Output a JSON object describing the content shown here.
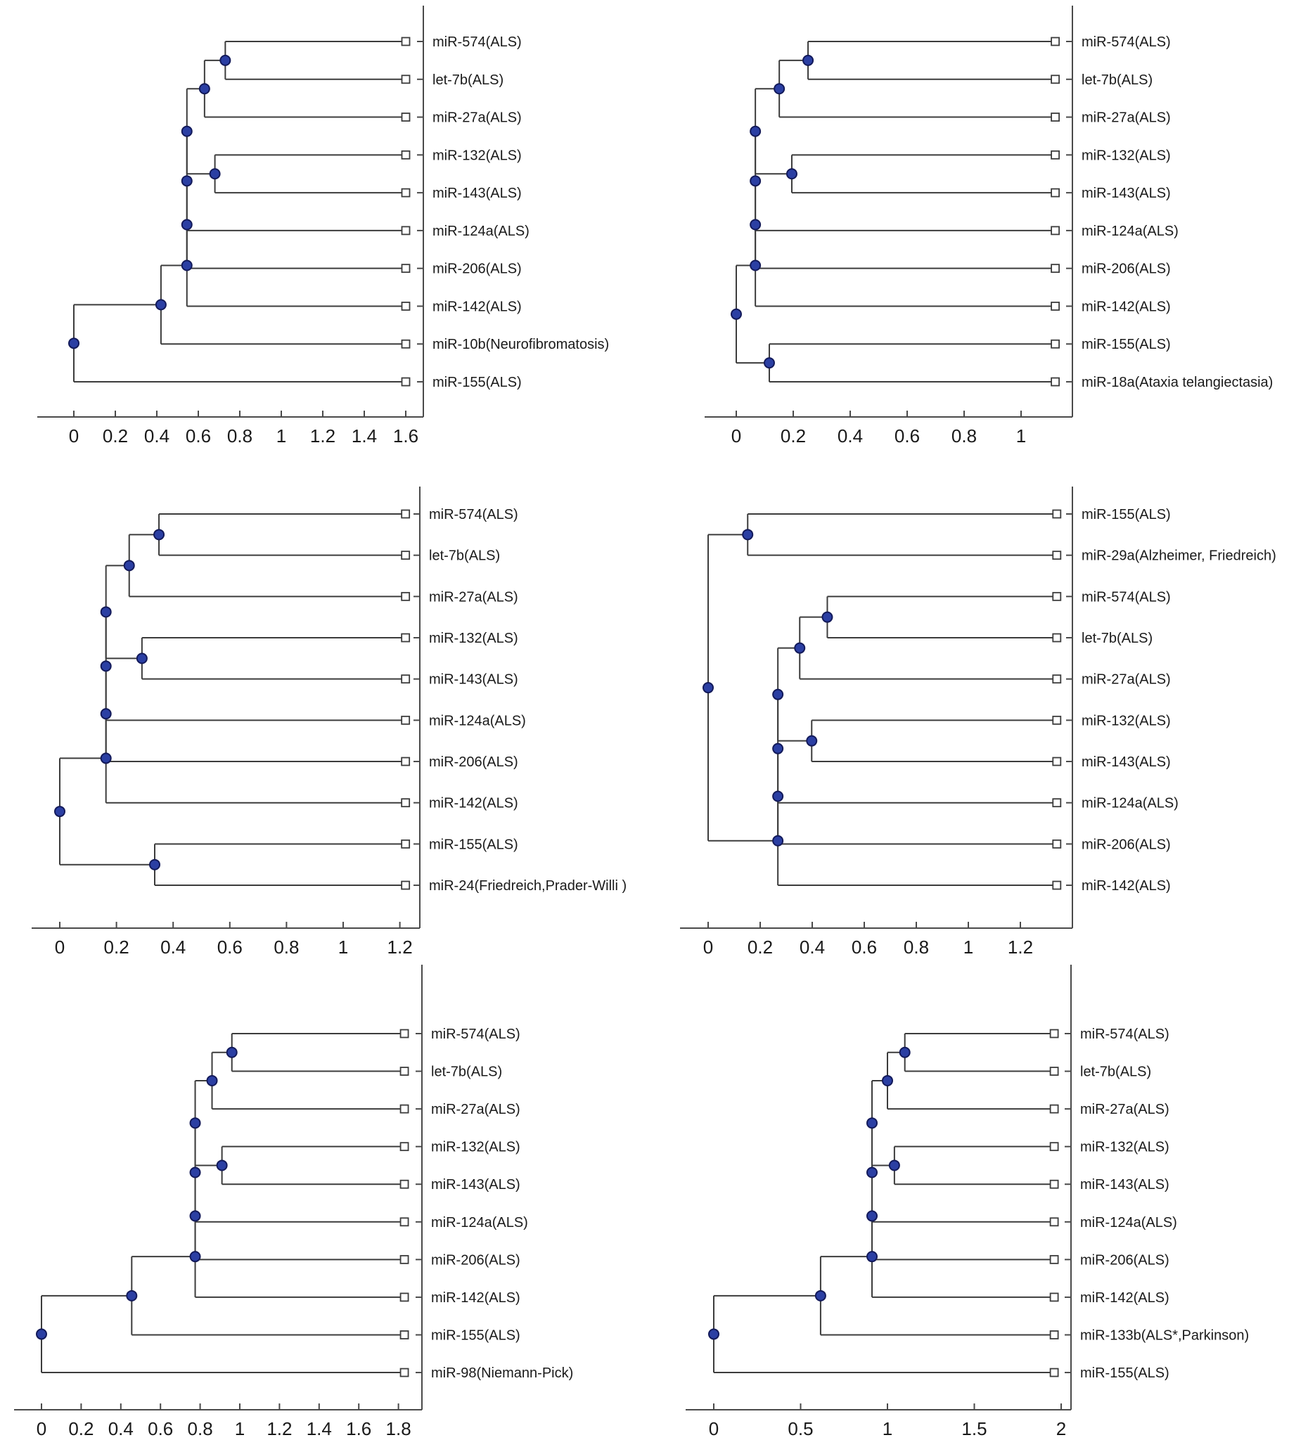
{
  "figure": {
    "kind": "dendrogram-grid",
    "grid": {
      "rows": 3,
      "cols": 2
    }
  },
  "colors": {
    "background": "#ffffff",
    "branch_line": "#3c3c3c",
    "axis_line": "#4a4a4a",
    "node_fill": "#2b3fa3",
    "node_stroke": "#131a5a",
    "leaf_marker_fill": "#ffffff",
    "leaf_marker_stroke": "#3c3c3c",
    "text": "#1a1a1a"
  },
  "chart_data": [
    {
      "type": "dendrogram",
      "panel": "top-left",
      "orientation": "leaves-right",
      "leaves": [
        "miR-574(ALS)",
        "let-7b(ALS)",
        "miR-27a(ALS)",
        "miR-132(ALS)",
        "miR-143(ALS)",
        "miR-124a(ALS)",
        "miR-206(ALS)",
        "miR-142(ALS)",
        "miR-10b(Neurofibromatosis)",
        "miR-155(ALS)"
      ],
      "merges": [
        {
          "id": "A",
          "a": "L0",
          "b": "L1",
          "v": 0.73
        },
        {
          "id": "B",
          "a": "A",
          "b": "L2",
          "v": 0.63
        },
        {
          "id": "C",
          "a": "L3",
          "b": "L4",
          "v": 0.68
        },
        {
          "id": "D",
          "a": "B",
          "b": "C",
          "v": 0.545
        },
        {
          "id": "E",
          "a": "D",
          "b": "L5",
          "v": 0.545
        },
        {
          "id": "F",
          "a": "E",
          "b": "L6",
          "v": 0.545
        },
        {
          "id": "G",
          "a": "F",
          "b": "L7",
          "v": 0.545
        },
        {
          "id": "H",
          "a": "G",
          "b": "L8",
          "v": 0.42
        },
        {
          "id": "R",
          "a": "H",
          "b": "L9",
          "v": 0.0
        }
      ],
      "ticks": [
        0,
        0.2,
        0.4,
        0.6,
        0.8,
        1,
        1.2,
        1.4,
        1.6
      ],
      "tick_labels": [
        "0",
        "0.2",
        "0.4",
        "0.6",
        "0.8",
        "1",
        "1.2",
        "1.4",
        "1.6"
      ],
      "leaf_value": 1.6
    },
    {
      "type": "dendrogram",
      "panel": "top-right",
      "orientation": "leaves-right",
      "leaves": [
        "miR-574(ALS)",
        "let-7b(ALS)",
        "miR-27a(ALS)",
        "miR-132(ALS)",
        "miR-143(ALS)",
        "miR-124a(ALS)",
        "miR-206(ALS)",
        "miR-142(ALS)",
        "miR-155(ALS)",
        "miR-18a(Ataxia telangiectasia)"
      ],
      "merges": [
        {
          "id": "A",
          "a": "L0",
          "b": "L1",
          "v": 0.252
        },
        {
          "id": "B",
          "a": "A",
          "b": "L2",
          "v": 0.151
        },
        {
          "id": "C",
          "a": "L3",
          "b": "L4",
          "v": 0.195
        },
        {
          "id": "D",
          "a": "B",
          "b": "C",
          "v": 0.067
        },
        {
          "id": "E",
          "a": "D",
          "b": "L5",
          "v": 0.067
        },
        {
          "id": "F",
          "a": "E",
          "b": "L6",
          "v": 0.067
        },
        {
          "id": "G",
          "a": "F",
          "b": "L7",
          "v": 0.067
        },
        {
          "id": "I",
          "a": "L8",
          "b": "L9",
          "v": 0.116
        },
        {
          "id": "R",
          "a": "G",
          "b": "I",
          "v": 0.0
        }
      ],
      "ticks": [
        0,
        0.2,
        0.4,
        0.6,
        0.8,
        1
      ],
      "tick_labels": [
        "0",
        "0.2",
        "0.4",
        "0.6",
        "0.8",
        "1"
      ],
      "leaf_value": 1.12
    },
    {
      "type": "dendrogram",
      "panel": "middle-left",
      "orientation": "leaves-right",
      "leaves": [
        "miR-574(ALS)",
        "let-7b(ALS)",
        "miR-27a(ALS)",
        "miR-132(ALS)",
        "miR-143(ALS)",
        "miR-124a(ALS)",
        "miR-206(ALS)",
        "miR-142(ALS)",
        "miR-155(ALS)",
        "miR-24(Friedreich,Prader-Willi )"
      ],
      "merges": [
        {
          "id": "A",
          "a": "L0",
          "b": "L1",
          "v": 0.35
        },
        {
          "id": "B",
          "a": "A",
          "b": "L2",
          "v": 0.245
        },
        {
          "id": "C",
          "a": "L3",
          "b": "L4",
          "v": 0.29
        },
        {
          "id": "D",
          "a": "B",
          "b": "C",
          "v": 0.163
        },
        {
          "id": "E",
          "a": "D",
          "b": "L5",
          "v": 0.163
        },
        {
          "id": "F",
          "a": "E",
          "b": "L6",
          "v": 0.163
        },
        {
          "id": "G",
          "a": "F",
          "b": "L7",
          "v": 0.163
        },
        {
          "id": "I",
          "a": "L8",
          "b": "L9",
          "v": 0.335
        },
        {
          "id": "R",
          "a": "G",
          "b": "I",
          "v": 0.0
        }
      ],
      "ticks": [
        0,
        0.2,
        0.4,
        0.6,
        0.8,
        1,
        1.2
      ],
      "tick_labels": [
        "0",
        "0.2",
        "0.4",
        "0.6",
        "0.8",
        "1",
        "1.2"
      ],
      "leaf_value": 1.22
    },
    {
      "type": "dendrogram",
      "panel": "middle-right",
      "orientation": "leaves-right",
      "leaves": [
        "miR-155(ALS)",
        "miR-29a(Alzheimer, Friedreich)",
        "miR-574(ALS)",
        "let-7b(ALS)",
        "miR-27a(ALS)",
        "miR-132(ALS)",
        "miR-143(ALS)",
        "miR-124a(ALS)",
        "miR-206(ALS)",
        "miR-142(ALS)"
      ],
      "merges": [
        {
          "id": "J",
          "a": "L0",
          "b": "L1",
          "v": 0.152
        },
        {
          "id": "A",
          "a": "L2",
          "b": "L3",
          "v": 0.458
        },
        {
          "id": "B",
          "a": "A",
          "b": "L4",
          "v": 0.352
        },
        {
          "id": "C",
          "a": "L5",
          "b": "L6",
          "v": 0.398
        },
        {
          "id": "D",
          "a": "B",
          "b": "C",
          "v": 0.268
        },
        {
          "id": "E",
          "a": "D",
          "b": "L7",
          "v": 0.268
        },
        {
          "id": "F",
          "a": "E",
          "b": "L8",
          "v": 0.268
        },
        {
          "id": "G",
          "a": "F",
          "b": "L9",
          "v": 0.268
        },
        {
          "id": "R",
          "a": "J",
          "b": "G",
          "v": 0.0
        }
      ],
      "ticks": [
        0,
        0.2,
        0.4,
        0.6,
        0.8,
        1,
        1.2
      ],
      "tick_labels": [
        "0",
        "0.2",
        "0.4",
        "0.6",
        "0.8",
        "1",
        "1.2"
      ],
      "leaf_value": 1.34
    },
    {
      "type": "dendrogram",
      "panel": "bottom-left",
      "orientation": "leaves-right",
      "leaves": [
        "miR-574(ALS)",
        "let-7b(ALS)",
        "miR-27a(ALS)",
        "miR-132(ALS)",
        "miR-143(ALS)",
        "miR-124a(ALS)",
        "miR-206(ALS)",
        "miR-142(ALS)",
        "miR-155(ALS)",
        "miR-98(Niemann-Pick)"
      ],
      "merges": [
        {
          "id": "A",
          "a": "L0",
          "b": "L1",
          "v": 0.96
        },
        {
          "id": "B",
          "a": "A",
          "b": "L2",
          "v": 0.86
        },
        {
          "id": "C",
          "a": "L3",
          "b": "L4",
          "v": 0.91
        },
        {
          "id": "D",
          "a": "B",
          "b": "C",
          "v": 0.775
        },
        {
          "id": "E",
          "a": "D",
          "b": "L5",
          "v": 0.775
        },
        {
          "id": "F",
          "a": "E",
          "b": "L6",
          "v": 0.775
        },
        {
          "id": "G",
          "a": "F",
          "b": "L7",
          "v": 0.775
        },
        {
          "id": "H",
          "a": "G",
          "b": "L8",
          "v": 0.455
        },
        {
          "id": "R",
          "a": "H",
          "b": "L9",
          "v": 0.0
        }
      ],
      "ticks": [
        0,
        0.2,
        0.4,
        0.6,
        0.8,
        1,
        1.2,
        1.4,
        1.6,
        1.8
      ],
      "tick_labels": [
        "0",
        "0.2",
        "0.4",
        "0.6",
        "0.8",
        "1",
        "1.2",
        "1.4",
        "1.6",
        "1.8"
      ],
      "leaf_value": 1.83
    },
    {
      "type": "dendrogram",
      "panel": "bottom-right",
      "orientation": "leaves-right",
      "leaves": [
        "miR-574(ALS)",
        "let-7b(ALS)",
        "miR-27a(ALS)",
        "miR-132(ALS)",
        "miR-143(ALS)",
        "miR-124a(ALS)",
        "miR-206(ALS)",
        "miR-142(ALS)",
        "miR-133b(ALS*,Parkinson)",
        "miR-155(ALS)"
      ],
      "merges": [
        {
          "id": "A",
          "a": "L0",
          "b": "L1",
          "v": 1.1
        },
        {
          "id": "B",
          "a": "A",
          "b": "L2",
          "v": 1.0
        },
        {
          "id": "C",
          "a": "L3",
          "b": "L4",
          "v": 1.04
        },
        {
          "id": "D",
          "a": "B",
          "b": "C",
          "v": 0.911
        },
        {
          "id": "E",
          "a": "D",
          "b": "L5",
          "v": 0.911
        },
        {
          "id": "F",
          "a": "E",
          "b": "L6",
          "v": 0.911
        },
        {
          "id": "G",
          "a": "F",
          "b": "L7",
          "v": 0.911
        },
        {
          "id": "H",
          "a": "G",
          "b": "L8",
          "v": 0.615
        },
        {
          "id": "R",
          "a": "H",
          "b": "L9",
          "v": 0.0
        }
      ],
      "ticks": [
        0,
        0.5,
        1,
        1.5,
        2
      ],
      "tick_labels": [
        "0",
        "0.5",
        "1",
        "1.5",
        "2"
      ],
      "leaf_value": 1.96
    }
  ]
}
